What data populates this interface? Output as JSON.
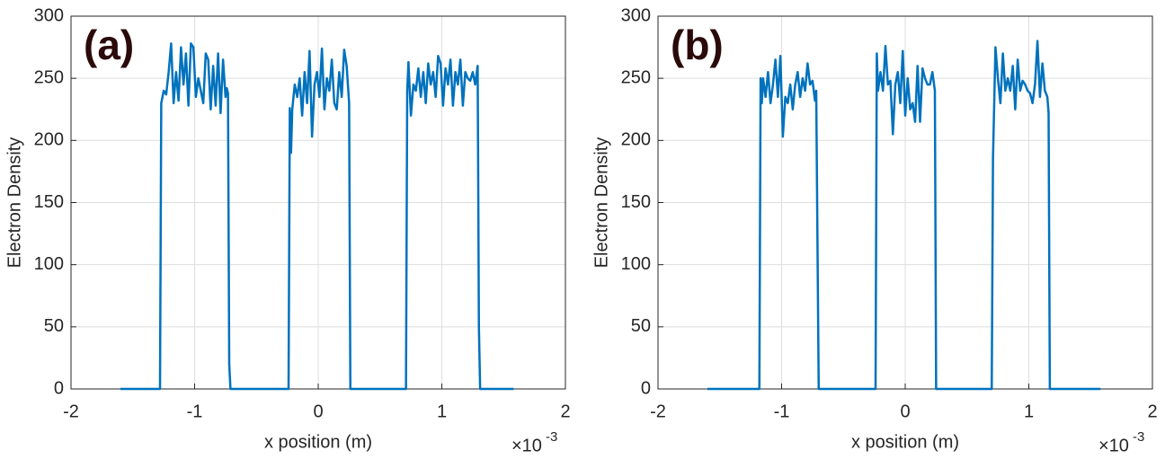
{
  "chart_data": [
    {
      "type": "line",
      "panel_label": "(a)",
      "xlabel": "x position (m)",
      "ylabel": "Electron Density",
      "x_multiplier": {
        "base": "×10",
        "exponent": "-3"
      },
      "xlim": [
        -2,
        2
      ],
      "ylim": [
        0,
        300
      ],
      "xticks": [
        -2,
        -1,
        0,
        1,
        2
      ],
      "yticks": [
        0,
        50,
        100,
        150,
        200,
        250,
        300
      ],
      "grid": true,
      "x": [
        -1.6,
        -1.28,
        -1.27,
        -1.25,
        -1.23,
        -1.21,
        -1.19,
        -1.17,
        -1.15,
        -1.13,
        -1.11,
        -1.09,
        -1.07,
        -1.05,
        -1.03,
        -1.01,
        -0.99,
        -0.97,
        -0.95,
        -0.93,
        -0.91,
        -0.89,
        -0.87,
        -0.85,
        -0.83,
        -0.81,
        -0.79,
        -0.77,
        -0.75,
        -0.74,
        -0.73,
        -0.72,
        -0.71,
        -0.24,
        -0.23,
        -0.22,
        -0.21,
        -0.19,
        -0.17,
        -0.15,
        -0.13,
        -0.11,
        -0.09,
        -0.07,
        -0.05,
        -0.03,
        -0.01,
        0.01,
        0.03,
        0.05,
        0.07,
        0.09,
        0.11,
        0.13,
        0.15,
        0.17,
        0.19,
        0.21,
        0.23,
        0.25,
        0.26,
        0.71,
        0.72,
        0.73,
        0.75,
        0.77,
        0.79,
        0.81,
        0.83,
        0.85,
        0.87,
        0.89,
        0.91,
        0.93,
        0.95,
        0.97,
        0.99,
        1.01,
        1.03,
        1.05,
        1.07,
        1.09,
        1.11,
        1.13,
        1.15,
        1.17,
        1.19,
        1.21,
        1.23,
        1.25,
        1.27,
        1.29,
        1.3,
        1.31,
        1.58
      ],
      "series": [
        {
          "color": "#0072bd",
          "values": [
            0,
            0,
            230,
            240,
            237,
            255,
            278,
            230,
            255,
            232,
            275,
            245,
            270,
            228,
            278,
            275,
            235,
            250,
            240,
            230,
            270,
            265,
            225,
            260,
            228,
            270,
            222,
            265,
            235,
            242,
            238,
            20,
            0,
            0,
            226,
            190,
            225,
            245,
            235,
            250,
            220,
            255,
            230,
            272,
            203,
            245,
            255,
            235,
            274,
            225,
            250,
            240,
            265,
            230,
            225,
            255,
            235,
            273,
            260,
            230,
            0,
            0,
            240,
            263,
            220,
            245,
            240,
            258,
            235,
            255,
            230,
            262,
            245,
            255,
            235,
            268,
            262,
            228,
            258,
            245,
            265,
            228,
            255,
            245,
            265,
            228,
            255,
            250,
            248,
            255,
            245,
            260,
            50,
            0,
            0
          ]
        }
      ]
    },
    {
      "type": "line",
      "panel_label": "(b)",
      "xlabel": "x position (m)",
      "ylabel": "Electron Density",
      "x_multiplier": {
        "base": "×10",
        "exponent": "-3"
      },
      "xlim": [
        -2,
        2
      ],
      "ylim": [
        0,
        300
      ],
      "xticks": [
        -2,
        -1,
        0,
        1,
        2
      ],
      "yticks": [
        0,
        50,
        100,
        150,
        200,
        250,
        300
      ],
      "grid": true,
      "x": [
        -1.6,
        -1.18,
        -1.17,
        -1.16,
        -1.15,
        -1.13,
        -1.11,
        -1.09,
        -1.07,
        -1.05,
        -1.03,
        -1.01,
        -0.99,
        -0.97,
        -0.95,
        -0.93,
        -0.91,
        -0.89,
        -0.87,
        -0.85,
        -0.83,
        -0.81,
        -0.79,
        -0.77,
        -0.75,
        -0.73,
        -0.72,
        -0.7,
        -0.24,
        -0.23,
        -0.22,
        -0.2,
        -0.18,
        -0.16,
        -0.14,
        -0.12,
        -0.1,
        -0.08,
        -0.06,
        -0.04,
        -0.02,
        0,
        0.02,
        0.04,
        0.06,
        0.08,
        0.1,
        0.12,
        0.14,
        0.16,
        0.18,
        0.2,
        0.22,
        0.24,
        0.25,
        0.7,
        0.71,
        0.72,
        0.73,
        0.75,
        0.77,
        0.79,
        0.81,
        0.83,
        0.85,
        0.87,
        0.89,
        0.91,
        0.93,
        0.95,
        0.97,
        0.99,
        1.01,
        1.03,
        1.05,
        1.07,
        1.09,
        1.11,
        1.13,
        1.15,
        1.16,
        1.17,
        1.58
      ],
      "series": [
        {
          "color": "#0072bd",
          "values": [
            0,
            0,
            250,
            230,
            250,
            235,
            255,
            230,
            245,
            265,
            235,
            268,
            203,
            235,
            230,
            245,
            225,
            245,
            255,
            235,
            250,
            240,
            262,
            245,
            248,
            232,
            240,
            0,
            0,
            270,
            240,
            255,
            240,
            276,
            245,
            248,
            205,
            245,
            255,
            230,
            272,
            220,
            250,
            225,
            230,
            215,
            260,
            215,
            258,
            250,
            245,
            245,
            255,
            240,
            0,
            0,
            185,
            230,
            275,
            250,
            230,
            270,
            240,
            250,
            240,
            260,
            225,
            265,
            240,
            248,
            245,
            240,
            238,
            230,
            245,
            280,
            235,
            262,
            240,
            235,
            222,
            0,
            0
          ]
        }
      ]
    }
  ]
}
